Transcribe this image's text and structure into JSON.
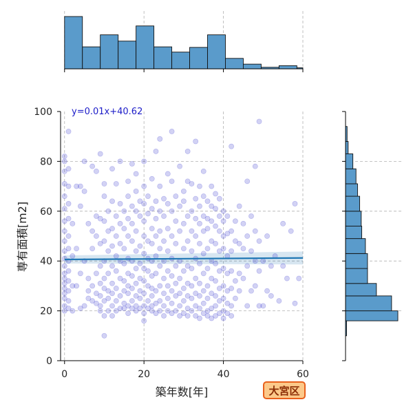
{
  "chart_data": {
    "type": "scatter",
    "xlabel": "築年数[年]",
    "ylabel": "専有面積[m2]",
    "xlim": [
      -1,
      60
    ],
    "ylim": [
      0,
      100
    ],
    "x_ticks": [
      0,
      20,
      40,
      60
    ],
    "y_ticks": [
      0,
      20,
      40,
      60,
      80,
      100
    ],
    "grid": true,
    "regression": {
      "label": "y=0.01x+40.62",
      "slope": 0.01,
      "intercept": 40.62,
      "x_range": [
        0,
        60
      ],
      "band_halfwidth_at_ends": [
        1.6,
        2.6
      ],
      "color": "#1f77b4"
    },
    "point_color": "#3333cc",
    "hist_color": "#5a9bcb",
    "x_hist": {
      "bin_edges": [
        0,
        4.5,
        9,
        13.5,
        18,
        22.5,
        27,
        31.5,
        36,
        40.5,
        45,
        49.5,
        54,
        58.5,
        60
      ],
      "relative_heights": [
        1.0,
        0.42,
        0.65,
        0.53,
        0.82,
        0.42,
        0.32,
        0.41,
        0.65,
        0.2,
        0.09,
        0.03,
        0.06,
        0.02
      ]
    },
    "y_hist": {
      "bin_edges": [
        10,
        16,
        20,
        26,
        31,
        37,
        43,
        49,
        54,
        60,
        66,
        71,
        77,
        83,
        88,
        94
      ],
      "relative_widths": [
        0.02,
        1.0,
        0.88,
        0.59,
        0.42,
        0.42,
        0.38,
        0.31,
        0.3,
        0.27,
        0.23,
        0.2,
        0.14,
        0.05,
        0.03
      ]
    },
    "points": [
      [
        0,
        20
      ],
      [
        0,
        22
      ],
      [
        0,
        25
      ],
      [
        0,
        27
      ],
      [
        0,
        29
      ],
      [
        0,
        31
      ],
      [
        0,
        33
      ],
      [
        0,
        35
      ],
      [
        0,
        38
      ],
      [
        0,
        41
      ],
      [
        0,
        44
      ],
      [
        0,
        48
      ],
      [
        0,
        52
      ],
      [
        0,
        56
      ],
      [
        0,
        61
      ],
      [
        0,
        66
      ],
      [
        0,
        71
      ],
      [
        0,
        76
      ],
      [
        0,
        80
      ],
      [
        0,
        82
      ],
      [
        1,
        21
      ],
      [
        1,
        24
      ],
      [
        1,
        28
      ],
      [
        1,
        32
      ],
      [
        1,
        36
      ],
      [
        1,
        40
      ],
      [
        1,
        45
      ],
      [
        1,
        50
      ],
      [
        1,
        57
      ],
      [
        1,
        63
      ],
      [
        1,
        70
      ],
      [
        1,
        77
      ],
      [
        1,
        92
      ],
      [
        2,
        20
      ],
      [
        2,
        30
      ],
      [
        2,
        42
      ],
      [
        2,
        55
      ],
      [
        3,
        30
      ],
      [
        3,
        45
      ],
      [
        3,
        70
      ],
      [
        4,
        21
      ],
      [
        4,
        35
      ],
      [
        4,
        62
      ],
      [
        4,
        70
      ],
      [
        5,
        22
      ],
      [
        5,
        40
      ],
      [
        5,
        68
      ],
      [
        5,
        80
      ],
      [
        6,
        25
      ],
      [
        6,
        28
      ],
      [
        6,
        33
      ],
      [
        6,
        55
      ],
      [
        7,
        24
      ],
      [
        7,
        30
      ],
      [
        7,
        45
      ],
      [
        7,
        52
      ],
      [
        7,
        78
      ],
      [
        8,
        23
      ],
      [
        8,
        27
      ],
      [
        8,
        35
      ],
      [
        8,
        50
      ],
      [
        8,
        58
      ],
      [
        8,
        76
      ],
      [
        9,
        20
      ],
      [
        9,
        22
      ],
      [
        9,
        26
      ],
      [
        9,
        31
      ],
      [
        9,
        38
      ],
      [
        9,
        47
      ],
      [
        9,
        57
      ],
      [
        9,
        83
      ],
      [
        10,
        10
      ],
      [
        10,
        18
      ],
      [
        10,
        24
      ],
      [
        10,
        29
      ],
      [
        10,
        33
      ],
      [
        10,
        40
      ],
      [
        10,
        48
      ],
      [
        10,
        56
      ],
      [
        10,
        66
      ],
      [
        10,
        71
      ],
      [
        11,
        20
      ],
      [
        11,
        25
      ],
      [
        11,
        28
      ],
      [
        11,
        35
      ],
      [
        11,
        44
      ],
      [
        11,
        52
      ],
      [
        11,
        60
      ],
      [
        12,
        18
      ],
      [
        12,
        22
      ],
      [
        12,
        27
      ],
      [
        12,
        31
      ],
      [
        12,
        38
      ],
      [
        12,
        46
      ],
      [
        12,
        53
      ],
      [
        12,
        64
      ],
      [
        12,
        77
      ],
      [
        13,
        20
      ],
      [
        13,
        24
      ],
      [
        13,
        29
      ],
      [
        13,
        36
      ],
      [
        13,
        42
      ],
      [
        13,
        50
      ],
      [
        13,
        58
      ],
      [
        13,
        71
      ],
      [
        14,
        21
      ],
      [
        14,
        26
      ],
      [
        14,
        33
      ],
      [
        14,
        40
      ],
      [
        14,
        47
      ],
      [
        14,
        55
      ],
      [
        14,
        63
      ],
      [
        14,
        80
      ],
      [
        15,
        21
      ],
      [
        15,
        23
      ],
      [
        15,
        28
      ],
      [
        15,
        32
      ],
      [
        15,
        39
      ],
      [
        15,
        45
      ],
      [
        15,
        53
      ],
      [
        15,
        60
      ],
      [
        16,
        19
      ],
      [
        16,
        22
      ],
      [
        16,
        27
      ],
      [
        16,
        30
      ],
      [
        16,
        35
      ],
      [
        16,
        41
      ],
      [
        16,
        50
      ],
      [
        16,
        57
      ],
      [
        16,
        66
      ],
      [
        16,
        72
      ],
      [
        17,
        21
      ],
      [
        17,
        24
      ],
      [
        17,
        29
      ],
      [
        17,
        34
      ],
      [
        17,
        40
      ],
      [
        17,
        48
      ],
      [
        17,
        55
      ],
      [
        17,
        62
      ],
      [
        17,
        79
      ],
      [
        18,
        20
      ],
      [
        18,
        22
      ],
      [
        18,
        26
      ],
      [
        18,
        31
      ],
      [
        18,
        37
      ],
      [
        18,
        44
      ],
      [
        18,
        52
      ],
      [
        18,
        60
      ],
      [
        18,
        68
      ],
      [
        18,
        75
      ],
      [
        19,
        21
      ],
      [
        19,
        25
      ],
      [
        19,
        28
      ],
      [
        19,
        33
      ],
      [
        19,
        39
      ],
      [
        19,
        46
      ],
      [
        19,
        58
      ],
      [
        19,
        64
      ],
      [
        20,
        16
      ],
      [
        20,
        19
      ],
      [
        20,
        22
      ],
      [
        20,
        27
      ],
      [
        20,
        32
      ],
      [
        20,
        37
      ],
      [
        20,
        43
      ],
      [
        20,
        50
      ],
      [
        20,
        56
      ],
      [
        20,
        63
      ],
      [
        20,
        70
      ],
      [
        20,
        80
      ],
      [
        21,
        21
      ],
      [
        21,
        24
      ],
      [
        21,
        30
      ],
      [
        21,
        36
      ],
      [
        21,
        41
      ],
      [
        21,
        48
      ],
      [
        21,
        59
      ],
      [
        21,
        66
      ],
      [
        22,
        20
      ],
      [
        22,
        22
      ],
      [
        22,
        26
      ],
      [
        22,
        29
      ],
      [
        22,
        34
      ],
      [
        22,
        40
      ],
      [
        22,
        47
      ],
      [
        22,
        53
      ],
      [
        22,
        61
      ],
      [
        22,
        73
      ],
      [
        23,
        19
      ],
      [
        23,
        23
      ],
      [
        23,
        28
      ],
      [
        23,
        35
      ],
      [
        23,
        42
      ],
      [
        23,
        50
      ],
      [
        23,
        57
      ],
      [
        23,
        64
      ],
      [
        23,
        84
      ],
      [
        24,
        20
      ],
      [
        24,
        24
      ],
      [
        24,
        30
      ],
      [
        24,
        38
      ],
      [
        24,
        45
      ],
      [
        24,
        52
      ],
      [
        24,
        60
      ],
      [
        24,
        70
      ],
      [
        24,
        89
      ],
      [
        25,
        18
      ],
      [
        25,
        22
      ],
      [
        25,
        27
      ],
      [
        25,
        33
      ],
      [
        25,
        40
      ],
      [
        25,
        48
      ],
      [
        25,
        58
      ],
      [
        25,
        65
      ],
      [
        26,
        20
      ],
      [
        26,
        25
      ],
      [
        26,
        30
      ],
      [
        26,
        36
      ],
      [
        26,
        44
      ],
      [
        26,
        53
      ],
      [
        26,
        63
      ],
      [
        26,
        75
      ],
      [
        27,
        19
      ],
      [
        27,
        23
      ],
      [
        27,
        28
      ],
      [
        27,
        34
      ],
      [
        27,
        41
      ],
      [
        27,
        50
      ],
      [
        27,
        60
      ],
      [
        27,
        72
      ],
      [
        27,
        92
      ],
      [
        28,
        20
      ],
      [
        28,
        26
      ],
      [
        28,
        31
      ],
      [
        28,
        38
      ],
      [
        28,
        47
      ],
      [
        28,
        56
      ],
      [
        28,
        66
      ],
      [
        29,
        18
      ],
      [
        29,
        22
      ],
      [
        29,
        27
      ],
      [
        29,
        33
      ],
      [
        29,
        40
      ],
      [
        29,
        52
      ],
      [
        29,
        62
      ],
      [
        29,
        78
      ],
      [
        30,
        19
      ],
      [
        30,
        24
      ],
      [
        30,
        29
      ],
      [
        30,
        36
      ],
      [
        30,
        45
      ],
      [
        30,
        55
      ],
      [
        30,
        64
      ],
      [
        30,
        68
      ],
      [
        31,
        18
      ],
      [
        31,
        21
      ],
      [
        31,
        26
      ],
      [
        31,
        31
      ],
      [
        31,
        38
      ],
      [
        31,
        48
      ],
      [
        31,
        58
      ],
      [
        31,
        72
      ],
      [
        31,
        84
      ],
      [
        32,
        20
      ],
      [
        32,
        25
      ],
      [
        32,
        30
      ],
      [
        32,
        37
      ],
      [
        32,
        44
      ],
      [
        32,
        52
      ],
      [
        32,
        60
      ],
      [
        32,
        71
      ],
      [
        33,
        18
      ],
      [
        33,
        22
      ],
      [
        33,
        27
      ],
      [
        33,
        33
      ],
      [
        33,
        41
      ],
      [
        33,
        50
      ],
      [
        33,
        57
      ],
      [
        33,
        65
      ],
      [
        33,
        88
      ],
      [
        34,
        17
      ],
      [
        34,
        21
      ],
      [
        34,
        26
      ],
      [
        34,
        31
      ],
      [
        34,
        39
      ],
      [
        34,
        47
      ],
      [
        34,
        55
      ],
      [
        34,
        62
      ],
      [
        34,
        70
      ],
      [
        35,
        19
      ],
      [
        35,
        23
      ],
      [
        35,
        28
      ],
      [
        35,
        35
      ],
      [
        35,
        43
      ],
      [
        35,
        52
      ],
      [
        35,
        58
      ],
      [
        35,
        66
      ],
      [
        35,
        76
      ],
      [
        36,
        18
      ],
      [
        36,
        20
      ],
      [
        36,
        25
      ],
      [
        36,
        30
      ],
      [
        36,
        37
      ],
      [
        36,
        45
      ],
      [
        36,
        53
      ],
      [
        36,
        57
      ],
      [
        36,
        64
      ],
      [
        37,
        17
      ],
      [
        37,
        21
      ],
      [
        37,
        27
      ],
      [
        37,
        33
      ],
      [
        37,
        40
      ],
      [
        37,
        48
      ],
      [
        37,
        56
      ],
      [
        37,
        62
      ],
      [
        37,
        70
      ],
      [
        38,
        18
      ],
      [
        38,
        22
      ],
      [
        38,
        26
      ],
      [
        38,
        32
      ],
      [
        38,
        39
      ],
      [
        38,
        47
      ],
      [
        38,
        54
      ],
      [
        38,
        61
      ],
      [
        38,
        67
      ],
      [
        39,
        19
      ],
      [
        39,
        24
      ],
      [
        39,
        29
      ],
      [
        39,
        36
      ],
      [
        39,
        44
      ],
      [
        39,
        52
      ],
      [
        39,
        58
      ],
      [
        39,
        65
      ],
      [
        40,
        17
      ],
      [
        40,
        20
      ],
      [
        40,
        25
      ],
      [
        40,
        30
      ],
      [
        40,
        37
      ],
      [
        40,
        45
      ],
      [
        40,
        50
      ],
      [
        40,
        56
      ],
      [
        40,
        60
      ],
      [
        41,
        19
      ],
      [
        41,
        23
      ],
      [
        41,
        28
      ],
      [
        41,
        35
      ],
      [
        41,
        42
      ],
      [
        41,
        51
      ],
      [
        41,
        58
      ],
      [
        42,
        18
      ],
      [
        42,
        22
      ],
      [
        42,
        29
      ],
      [
        42,
        36
      ],
      [
        42,
        44
      ],
      [
        42,
        52
      ],
      [
        42,
        86
      ],
      [
        43,
        25
      ],
      [
        43,
        32
      ],
      [
        43,
        48
      ],
      [
        43,
        56
      ],
      [
        44,
        28
      ],
      [
        44,
        35
      ],
      [
        44,
        47
      ],
      [
        44,
        62
      ],
      [
        45,
        33
      ],
      [
        45,
        45
      ],
      [
        45,
        55
      ],
      [
        46,
        22
      ],
      [
        46,
        38
      ],
      [
        46,
        50
      ],
      [
        46,
        72
      ],
      [
        47,
        28
      ],
      [
        47,
        44
      ],
      [
        47,
        58
      ],
      [
        48,
        30
      ],
      [
        48,
        40
      ],
      [
        48,
        52
      ],
      [
        48,
        78
      ],
      [
        49,
        22
      ],
      [
        49,
        36
      ],
      [
        49,
        48
      ],
      [
        49,
        96
      ],
      [
        50,
        22
      ],
      [
        50,
        40
      ],
      [
        51,
        28
      ],
      [
        51,
        50
      ],
      [
        52,
        26
      ],
      [
        52,
        38
      ],
      [
        53,
        42
      ],
      [
        54,
        24
      ],
      [
        55,
        38
      ],
      [
        55,
        55
      ],
      [
        56,
        33
      ],
      [
        57,
        52
      ],
      [
        58,
        23
      ],
      [
        58,
        63
      ],
      [
        59,
        33
      ]
    ]
  },
  "badge": {
    "label": "大宮区",
    "bg": "#fcc98a",
    "border": "#e8601c",
    "text_color": "#8a2d05"
  }
}
